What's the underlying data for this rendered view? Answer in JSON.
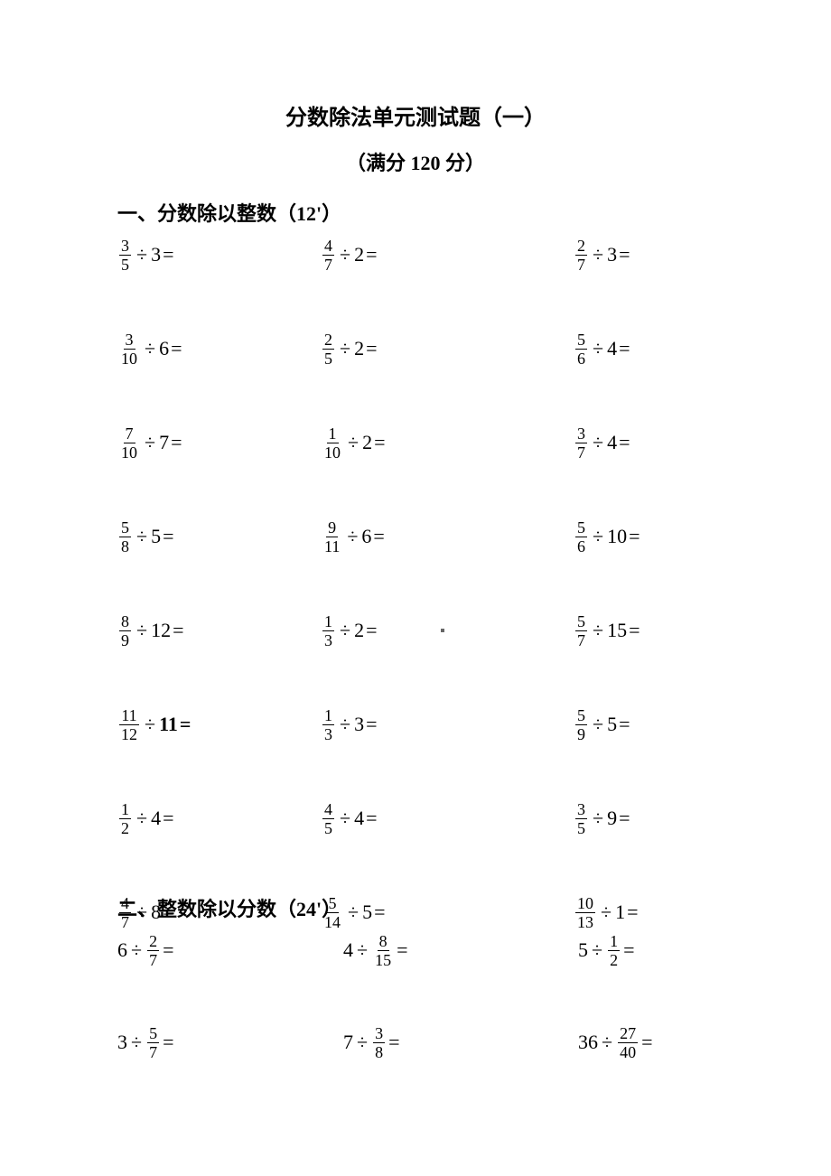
{
  "title": "分数除法单元测试题（一）",
  "subtitle": "（满分 120 分）",
  "section1": {
    "heading": "一、分数除以整数（12'）",
    "rows": [
      [
        {
          "left": {
            "type": "frac",
            "n": "3",
            "d": "5"
          },
          "right": {
            "type": "int",
            "v": "3"
          }
        },
        {
          "left": {
            "type": "frac",
            "n": "4",
            "d": "7"
          },
          "right": {
            "type": "int",
            "v": "2"
          }
        },
        {
          "left": {
            "type": "frac",
            "n": "2",
            "d": "7"
          },
          "right": {
            "type": "int",
            "v": "3"
          }
        }
      ],
      [
        {
          "left": {
            "type": "frac",
            "n": "3",
            "d": "10"
          },
          "right": {
            "type": "int",
            "v": "6"
          }
        },
        {
          "left": {
            "type": "frac",
            "n": "2",
            "d": "5"
          },
          "right": {
            "type": "int",
            "v": "2"
          }
        },
        {
          "left": {
            "type": "frac",
            "n": "5",
            "d": "6"
          },
          "right": {
            "type": "int",
            "v": "4"
          }
        }
      ],
      [
        {
          "left": {
            "type": "frac",
            "n": "7",
            "d": "10"
          },
          "right": {
            "type": "int",
            "v": "7"
          }
        },
        {
          "left": {
            "type": "frac",
            "n": "1",
            "d": "10"
          },
          "right": {
            "type": "int",
            "v": "2"
          }
        },
        {
          "left": {
            "type": "frac",
            "n": "3",
            "d": "7"
          },
          "right": {
            "type": "int",
            "v": "4"
          }
        }
      ],
      [
        {
          "left": {
            "type": "frac",
            "n": "5",
            "d": "8"
          },
          "right": {
            "type": "int",
            "v": "5"
          }
        },
        {
          "left": {
            "type": "frac",
            "n": "9",
            "d": "11"
          },
          "right": {
            "type": "int",
            "v": "6"
          }
        },
        {
          "left": {
            "type": "frac",
            "n": "5",
            "d": "6"
          },
          "right": {
            "type": "int",
            "v": "10"
          }
        }
      ],
      [
        {
          "left": {
            "type": "frac",
            "n": "8",
            "d": "9"
          },
          "right": {
            "type": "int",
            "v": "12"
          }
        },
        {
          "left": {
            "type": "frac",
            "n": "1",
            "d": "3"
          },
          "right": {
            "type": "int",
            "v": "2"
          },
          "marker": true
        },
        {
          "left": {
            "type": "frac",
            "n": "5",
            "d": "7"
          },
          "right": {
            "type": "int",
            "v": "15"
          }
        }
      ],
      [
        {
          "left": {
            "type": "frac",
            "n": "11",
            "d": "12"
          },
          "right": {
            "type": "int",
            "v": "11"
          },
          "bold": true
        },
        {
          "left": {
            "type": "frac",
            "n": "1",
            "d": "3"
          },
          "right": {
            "type": "int",
            "v": "3"
          }
        },
        {
          "left": {
            "type": "frac",
            "n": "5",
            "d": "9"
          },
          "right": {
            "type": "int",
            "v": "5"
          }
        }
      ],
      [
        {
          "left": {
            "type": "frac",
            "n": "1",
            "d": "2"
          },
          "right": {
            "type": "int",
            "v": "4"
          }
        },
        {
          "left": {
            "type": "frac",
            "n": "4",
            "d": "5"
          },
          "right": {
            "type": "int",
            "v": "4"
          }
        },
        {
          "left": {
            "type": "frac",
            "n": "3",
            "d": "5"
          },
          "right": {
            "type": "int",
            "v": "9"
          }
        }
      ],
      [
        {
          "left": {
            "type": "frac",
            "n": "4",
            "d": "7"
          },
          "right": {
            "type": "int",
            "v": "8"
          }
        },
        {
          "left": {
            "type": "frac",
            "n": "5",
            "d": "14"
          },
          "right": {
            "type": "int",
            "v": "5"
          }
        },
        {
          "left": {
            "type": "frac",
            "n": "10",
            "d": "13"
          },
          "right": {
            "type": "int",
            "v": "1"
          }
        }
      ]
    ]
  },
  "section2": {
    "heading": "二、整数除以分数（24'）",
    "rows": [
      [
        {
          "left": {
            "type": "int",
            "v": "6"
          },
          "right": {
            "type": "frac",
            "n": "2",
            "d": "7"
          }
        },
        {
          "left": {
            "type": "int",
            "v": "4"
          },
          "right": {
            "type": "frac",
            "n": "8",
            "d": "15"
          }
        },
        {
          "left": {
            "type": "int",
            "v": "5"
          },
          "right": {
            "type": "frac",
            "n": "1",
            "d": "2"
          }
        }
      ],
      [
        {
          "left": {
            "type": "int",
            "v": "3"
          },
          "right": {
            "type": "frac",
            "n": "5",
            "d": "7"
          }
        },
        {
          "left": {
            "type": "int",
            "v": "7"
          },
          "right": {
            "type": "frac",
            "n": "3",
            "d": "8"
          }
        },
        {
          "left": {
            "type": "int",
            "v": "36"
          },
          "right": {
            "type": "frac",
            "n": "27",
            "d": "40"
          }
        }
      ]
    ]
  },
  "symbols": {
    "divide": "÷",
    "equals": "="
  }
}
